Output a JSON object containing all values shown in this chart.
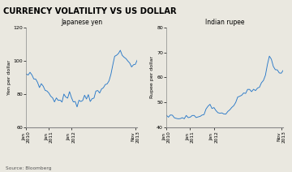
{
  "title": "CURRENCY VOLATILITY VS US DOLLAR",
  "title_bg": "#E8C020",
  "source": "Source: Bloomberg",
  "subplot1_title": "Japanese yen",
  "subplot1_ylabel": "Yen per dollar",
  "subplot1_ylim": [
    60,
    120
  ],
  "subplot1_yticks": [
    60,
    80,
    100,
    120
  ],
  "subplot2_title": "Indian rupee",
  "subplot2_ylabel": "Rupee per dollar",
  "subplot2_ylim": [
    40,
    80
  ],
  "subplot2_yticks": [
    40,
    50,
    60,
    70,
    80
  ],
  "xtick_labels": [
    "Jan\n2010",
    "Jan\n2011",
    "Jan\n2012",
    "Nov\n2013"
  ],
  "line_color": "#2878C8",
  "bg_color": "#EAE8E0",
  "plot_bg": "#EAE8E0",
  "yen_base": [
    90,
    92,
    93,
    91,
    90,
    89,
    87,
    86,
    85,
    84,
    83,
    82,
    80,
    79,
    78,
    77,
    77,
    76,
    76,
    77,
    78,
    78,
    78,
    79,
    78,
    77,
    76,
    75,
    75,
    76,
    77,
    78,
    79,
    79,
    78,
    78,
    79,
    80,
    80,
    81,
    82,
    84,
    85,
    87,
    90,
    94,
    97,
    100,
    103,
    105,
    104,
    103,
    102,
    101,
    100,
    99,
    98,
    97,
    98,
    99
  ],
  "rupee_base": [
    45,
    45,
    45,
    44,
    44,
    44,
    44,
    44,
    44,
    44,
    44,
    44,
    44,
    44,
    44,
    44,
    44,
    44,
    45,
    46,
    47,
    48,
    49,
    48,
    48,
    47,
    46,
    45,
    45,
    45,
    45,
    46,
    47,
    48,
    49,
    50,
    51,
    52,
    53,
    54,
    54,
    55,
    55,
    55,
    55,
    55,
    55,
    56,
    57,
    59,
    61,
    65,
    68,
    67,
    65,
    63,
    63,
    62,
    62,
    62
  ]
}
